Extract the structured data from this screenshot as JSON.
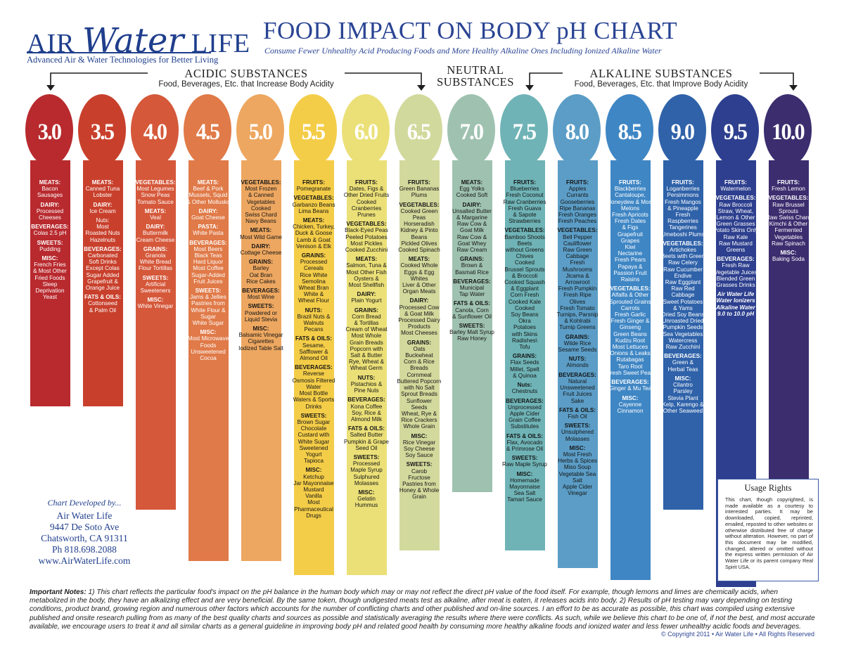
{
  "header": {
    "logo_air": "AIR",
    "logo_water": "Water",
    "logo_life": "LIFE",
    "logo_tagline": "Advanced Air & Water Technologies for Better Living",
    "title": "FOOD IMPACT ON BODY pH CHART",
    "subtitle": "Consume Fewer Unhealthy Acid Producing Foods and More Healthy Alkaline Ones Including Ionized Alkaline Water"
  },
  "groups": {
    "acidic_title": "ACIDIC SUBSTANCES",
    "acidic_sub": "Food, Beverages, Etc. that Increase Body Acidity",
    "neutral_title": "NEUTRAL\nSUBSTANCES",
    "alkaline_title": "ALKALINE SUBSTANCES",
    "alkaline_sub": "Food, Beverages, Etc. that Improve Body Acidity"
  },
  "columns": [
    {
      "ph": "3.0",
      "color": "#b82a2e",
      "text": "light",
      "sections": [
        {
          "h": "MEATS:",
          "v": "Bacon\nSausages"
        },
        {
          "h": "DAIRY:",
          "v": "Processed\nCheeses"
        },
        {
          "h": "BEVERAGES:",
          "v": "Colas 2.5 pH"
        },
        {
          "h": "SWEETS:",
          "v": "Pudding"
        },
        {
          "h": "MISC:",
          "v": "French Fries\n& Most Other\nFried Foods\nSleep\nDeprivation\nYeast"
        }
      ]
    },
    {
      "ph": "3.5",
      "color": "#c8402c",
      "text": "light",
      "sections": [
        {
          "h": "MEATS:",
          "v": "Canned Tuna\nLobster"
        },
        {
          "h": "DAIRY:",
          "v": "Ice Cream"
        },
        {
          "h": "",
          "v": "Nuts:\nMost\nRoasted Nuts\nHazelnuts"
        },
        {
          "h": "BEVERAGES:",
          "v": "Carbonated\nSoft Drinks\nExcept Colas\nSugar Added\nGrapefruit &\nOrange Juice"
        },
        {
          "h": "FATS & OILS:",
          "v": "Cottonseed\n& Palm Oil"
        }
      ]
    },
    {
      "ph": "4.0",
      "color": "#d5583a",
      "text": "light",
      "sections": [
        {
          "h": "VEGETABLES:",
          "v": "Most Legumes\nSnow Peas\nTomato Sauce"
        },
        {
          "h": "MEATS:",
          "v": "Veal"
        },
        {
          "h": "DAIRY:",
          "v": "Buttermilk\nCream Cheese"
        },
        {
          "h": "GRAINS:",
          "v": "Granola\nWhite Bread\nFlour Tortillas"
        },
        {
          "h": "SWEETS:",
          "v": "Artificial\nSweeteners"
        },
        {
          "h": "MISC:",
          "v": "White Vinegar"
        }
      ]
    },
    {
      "ph": "4.5",
      "color": "#e07a48",
      "text": "light",
      "sections": [
        {
          "h": "MEATS:",
          "v": "Beef & Pork\nMussels, Squid\n& Other Mollusks"
        },
        {
          "h": "DAIRY:",
          "v": "Goat Cheese"
        },
        {
          "h": "PASTA:",
          "v": "White Pasta"
        },
        {
          "h": "BEVERAGES:",
          "v": "Most Beers\nBlack Teas\nHard Liquor\nMost Coffee\nSugar-Added\nFruit Juices"
        },
        {
          "h": "SWEETS:",
          "v": "Jams & Jellies\nPastries from\nWhite Flour &\nSugar\nWhite Sugar"
        },
        {
          "h": "MISC:",
          "v": "Most Microwave\nFoods\nUnsweetened\nCocoa"
        }
      ]
    },
    {
      "ph": "5.0",
      "color": "#eda760",
      "text": "dark",
      "sections": [
        {
          "h": "VEGETABLES:",
          "v": "Most Frozen\n& Canned\nVegetables\nCooked\nSwiss Chard\nNavy Beans"
        },
        {
          "h": "MEATS:",
          "v": "Most Wild Game"
        },
        {
          "h": "DAIRY:",
          "v": "Cottage Cheese"
        },
        {
          "h": "GRAINS:",
          "v": "Barley\nOat Bran\nRice Cakes"
        },
        {
          "h": "BEVERAGES:",
          "v": "Most Wine"
        },
        {
          "h": "SWEETS:",
          "v": "Powdered or\nLiquid Stevia"
        },
        {
          "h": "MISC:",
          "v": "Balsamic Vinegar\nCigarettes\nIodized Table Salt"
        }
      ]
    },
    {
      "ph": "5.5",
      "color": "#f4cd48",
      "text": "dark",
      "sections": [
        {
          "h": "FRUITS:",
          "v": "Pomegranate"
        },
        {
          "h": "VEGETABLES:",
          "v": "Garbanzo Beans\nLima Beans"
        },
        {
          "h": "MEATS:",
          "v": "Chicken, Turkey,\nDuck & Goose\nLamb & Goat\nVenison & Elk"
        },
        {
          "h": "GRAINS:",
          "v": "Processed\nCereals\nRice White\nSemolina\nWheat Bran\nWhite &\nWheat Flour"
        },
        {
          "h": "NUTS:",
          "v": "Brazil Nuts &\nWalnuts\nPecans"
        },
        {
          "h": "FATS & OILS:",
          "v": "Sesame,\nSafflower &\nAlmond Oil"
        },
        {
          "h": "BEVERAGES:",
          "v": "Reverse\nOsmosis Filtered\nWater\nMost Bottle\nWaters & Sports\nDrinks"
        },
        {
          "h": "SWEETS:",
          "v": "Brown Sugar\nChocolate\nCustard with\nWhite Sugar\nSweetened\nYogurt\nTapioca"
        },
        {
          "h": "MISC:",
          "v": "Ketchup\nJar Mayonnaise\nMustard\nVanilla\nMost\nPharmaceutical\nDrugs"
        }
      ]
    },
    {
      "ph": "6.0",
      "color": "#ebe078",
      "text": "dark",
      "sections": [
        {
          "h": "FRUITS:",
          "v": "Dates, Figs &\nOther Dried Fruits\nCooked\nCranberries\nPrunes"
        },
        {
          "h": "VEGETABLES:",
          "v": "Black-Eyed Peas\nPeeled Potatoes\nMost Pickles\nCooked Zucchini"
        },
        {
          "h": "MEATS:",
          "v": "Salmon, Tuna &\nMost Other Fish\nOysters &\nMost Shellfish"
        },
        {
          "h": "DAIRY:",
          "v": "Plain Yogurt"
        },
        {
          "h": "GRAINS:",
          "v": "Corn Bread\n& Tortillas\nCream of Wheat\nMost Whole\nGrain Breads\nPopcorn with\nSalt & Butter\nRye, Wheat &\nWheat Germ"
        },
        {
          "h": "NUTS:",
          "v": "Pistachios &\nPine Nuts"
        },
        {
          "h": "BEVERAGES:",
          "v": "Kona Coffee\nSoy, Rice &\nAlmond Milk"
        },
        {
          "h": "FATS & OILS:",
          "v": "Salted Butter\nPumpkin & Grape\nSeed Oil"
        },
        {
          "h": "SWEETS:",
          "v": "Processed\nMaple Syrup\nSulphured\nMolasses"
        },
        {
          "h": "MISC:",
          "v": "Gelatin\nHummus"
        }
      ]
    },
    {
      "ph": "6.5",
      "color": "#d2d99c",
      "text": "dark",
      "sections": [
        {
          "h": "FRUITS:",
          "v": "Green Bananas\nPlums"
        },
        {
          "h": "VEGETABLES:",
          "v": "Cooked Green\nPeas\nHorseradish\nKidney & Pinto\nBeans\nPickled Olives\nCooked Spinach"
        },
        {
          "h": "MEATS:",
          "v": "Cooked Whole\nEggs & Egg\nWhites\nLiver & Other\nOrgan Meats"
        },
        {
          "h": "DAIRY:",
          "v": "Processed Cow\n& Goat Milk\nProcessed Dairy\nProducts\nMost Cheeses"
        },
        {
          "h": "GRAINS:",
          "v": "Oats\nBuckwheat\nCorn & Rice\nBreads\nCornmeal\nButtered Popcorn\nwith No Salt\nSprout Breads\nSunflower\nSeeds\nWheat, Rye &\nRice Crackers\nWhole Grain"
        },
        {
          "h": "MISC:",
          "v": "Rice Vinegar\nSoy Cheese\nSoy Sauce"
        },
        {
          "h": "SWEETS:",
          "v": "Carob\nFructose\nPastries from\nHoney & Whole\nGrain"
        }
      ]
    },
    {
      "ph": "7.0",
      "color": "#9fc2b0",
      "text": "dark",
      "sections": [
        {
          "h": "MEATS:",
          "v": "Egg Yolks\nCooked Soft"
        },
        {
          "h": "DAIRY:",
          "v": "Unsalted Butter\n& Margarine\nRaw Cow &\nGoat Milk\nRaw Cow &\nGoat Whey\nRaw Cream"
        },
        {
          "h": "GRAINS:",
          "v": "Brown &\nBasmati Rice"
        },
        {
          "h": "BEVERAGES:",
          "v": "Municipal\nTap Water"
        },
        {
          "h": "FATS & OILS:",
          "v": "Canola, Corn\n& Sunflower Oil"
        },
        {
          "h": "SWEETS:",
          "v": "Barley Malt Syrup\nRaw Honey"
        }
      ]
    },
    {
      "ph": "7.5",
      "color": "#6fb3b6",
      "text": "dark",
      "sections": [
        {
          "h": "FRUITS:",
          "v": "Blueberries\nFresh Coconut\nRaw Cranberries\nFresh Guava\n& Sapote\nStrawberries"
        },
        {
          "h": "VEGETABLES:",
          "v": "Bamboo Shoots\nBeets\nwithout Greens\nChives\nCooked\nBrussel Sprouts\n& Broccoli\nCooked Squash\n& Eggplant\nCorn Fresh\nCooked Kale\nCooked\nSoy Beans\nOkra\nPotatoes\nwith Skins\nRadishes\\\nTofu"
        },
        {
          "h": "GRAINS:",
          "v": "Flax Seeds\nMillet, Spelt\n& Quinoa"
        },
        {
          "h": "Nuts:",
          "v": "Chestnuts"
        },
        {
          "h": "BEVERAGES:",
          "v": "Unprocessed\nApple Cider\nGrain Coffee\nSubstitutes"
        },
        {
          "h": "FATS & OILS:",
          "v": "Flax, Avocado\n& Primrose Oil"
        },
        {
          "h": "SWEETS:",
          "v": "Raw Maple Syrup"
        },
        {
          "h": "MISC:",
          "v": "Homemade\nMayonnaise\nSea Salt\nTamari Sauce"
        }
      ]
    },
    {
      "ph": "8.0",
      "color": "#5b9dc6",
      "text": "dark",
      "sections": [
        {
          "h": "FRUITS:",
          "v": "Apples\nCurrants\nGooseberries\nRipe Bananas\nFresh Oranges\nFresh Peaches"
        },
        {
          "h": "VEGETABLES:",
          "v": "Bell Pepper\nCauliflower\nRaw Green\nCabbage\nFresh\nMushrooms\nJicama &\nArrowroot\nFresh Pumpkin\nFresh Ripe\nOlives\nFresh Tomato\nTurnips, Parsnip\n& Kohlrabi\nTurnip Greens"
        },
        {
          "h": "GRAINS:",
          "v": "Wilde Rice\nSesame Seeds"
        },
        {
          "h": "NUTS:",
          "v": "Almonds"
        },
        {
          "h": "BEVERAGES:",
          "v": "Natural\nUnsweetened\nFruit Juices\nSake"
        },
        {
          "h": "FATS & OILS:",
          "v": "Fish Oil"
        },
        {
          "h": "SWEETS:",
          "v": "Unsulphered\nMolasses"
        },
        {
          "h": "MISC:",
          "v": "Most Fresh\nHerbs & Spices\nMiso Soup\nVegetable Sea\nSalt\nApple Cider\nVinegar"
        }
      ]
    },
    {
      "ph": "8.5",
      "color": "#3f86c4",
      "text": "light",
      "sections": [
        {
          "h": "FRUITS:",
          "v": "Blackberries\nCantaloupe,\nHoneydew & Most\nMelons\nFresh Apricots\nFresh Dates\n& Figs\nGrapefruit\nGrapes\nKiwi\nNectarine\nFresh Pears\nPapaya &\nPassion Fruit\nRaisins"
        },
        {
          "h": "VEGETABLES:",
          "v": "Alfalfa & Other\nSprouted Grains\nCarrots\nFresh Garlic\nFresh Ginger &\nGinseng\nGreen Beans\nKudzu Root\nMost Lettuces\nOnions & Leaks\nRutabagas\nTaro Root\nFresh Sweet Peas"
        },
        {
          "h": "BEVERAGES:",
          "v": "Ginger & Mu Tea"
        },
        {
          "h": "MISC:",
          "v": "Cayenne\nCinnamon"
        }
      ]
    },
    {
      "ph": "9.0",
      "color": "#2f62a9",
      "text": "light",
      "sections": [
        {
          "h": "FRUITS:",
          "v": "Loganberries\nPersimmons\nFresh Mangos\n& Pineapple\nFresh\nRaspberries\nTangerines\nUmeboshi Plums"
        },
        {
          "h": "VEGETABLES:",
          "v": "Artichokes\nBeets with Green\nRaw Celery\nRaw Cucumber\nEndive\nRaw Eggplant\nRaw Red\nCabbage\nSweet Potatoes\n& Yams\nDried Soy Beans\nUnroasted Dried\nPumpkin Seeds\nSea Vegetables\nWatercress\nRaw Zucchini"
        },
        {
          "h": "BEVERAGES:",
          "v": "Green &\nHerbal Teas"
        },
        {
          "h": "MISC:",
          "v": "Cilantro\nParsley\nStevia Plant\nKelp, Karengo &\nOther Seaweed"
        }
      ]
    },
    {
      "ph": "9.5",
      "color": "#2d3f8e",
      "text": "light",
      "note": "Air Water Life\nWater Ionizers\nAlkaline Water\n9.0 to 10.0 pH",
      "sections": [
        {
          "h": "FRUITS:",
          "v": "Watermelon"
        },
        {
          "h": "VEGETABLES:",
          "v": "Raw Broccoli\nStraw, Wheat,\nLemon & Other\nGreen Grasses\nPotato Skins Only\nRaw Kale\nRaw Mustard\nGreens"
        },
        {
          "h": "BEVERAGES:",
          "v": "Fresh Raw\nVegetable Juices\nBlended Green\nGrasses Drinks"
        }
      ]
    },
    {
      "ph": "10.0",
      "color": "#3b2d6e",
      "text": "light",
      "sections": [
        {
          "h": "FRUITS:",
          "v": "Fresh Lemon"
        },
        {
          "h": "VEGETABLES:",
          "v": "Raw Brussel\nSprouts\nRaw Swiss Chard\nKimchi & Other\nFermented\nVegetables\nRaw Spinach"
        },
        {
          "h": "MISC:",
          "v": "Baking Soda"
        }
      ]
    }
  ],
  "developer": {
    "heading": "Chart Developed by...",
    "name": "Air Water Life",
    "street": "9447 De Soto Ave",
    "city": "Chatsworth, CA 91311",
    "phone": "Ph 818.698.2088",
    "web": "www.AirWaterLife.com"
  },
  "usage_rights": {
    "title": "Usage Rights",
    "text": "This chart, though copyrighted, is made available as a courtesy to interested parties. It may be downloaded, copied, reprinted, emailed, reposted to other websites or otherwise distributed free of charge without alteration. However, no part of this document may be modified, changed, altered or omitted without the express written permission of Air Water Life or its parent company Real Spirit USA."
  },
  "notes": {
    "label": "Important Notes:",
    "text": " 1) This chart reflects the particular food's impact on the pH balance in the human body which may or may not reflect the direct pH value of the food itself. For example, though lemons and limes are chemically acids, when metabolized in the body, they have an alkalizing effect and are very beneficial. By the same token, though undigested meats test as alkaline, after meat is eaten, it releases acids into body. 2) Results of pH testing may vary depending on testing conditions, product brand, growing region and numerous other factors which accounts for the number of conflicting charts and other published and on-line sources. I an effort to be as accurate as possible, this chart was compiled using extensive published and onsite research pulling from as many of the best quality charts and sources as possible and statistically averaging the results where there were conflicts. As such, while we believe this chart to be one of, if not the best, and most accurate available, we encourage users to treat it and all similar charts as a general guideline in improving body pH and related good health by consuming more healthy alkaline foods and ionized water and less fewer unhealthy acidic foods and beverages."
  },
  "copyright": "© Copyright 2011 • Air Water Life • All Rights Reserved"
}
